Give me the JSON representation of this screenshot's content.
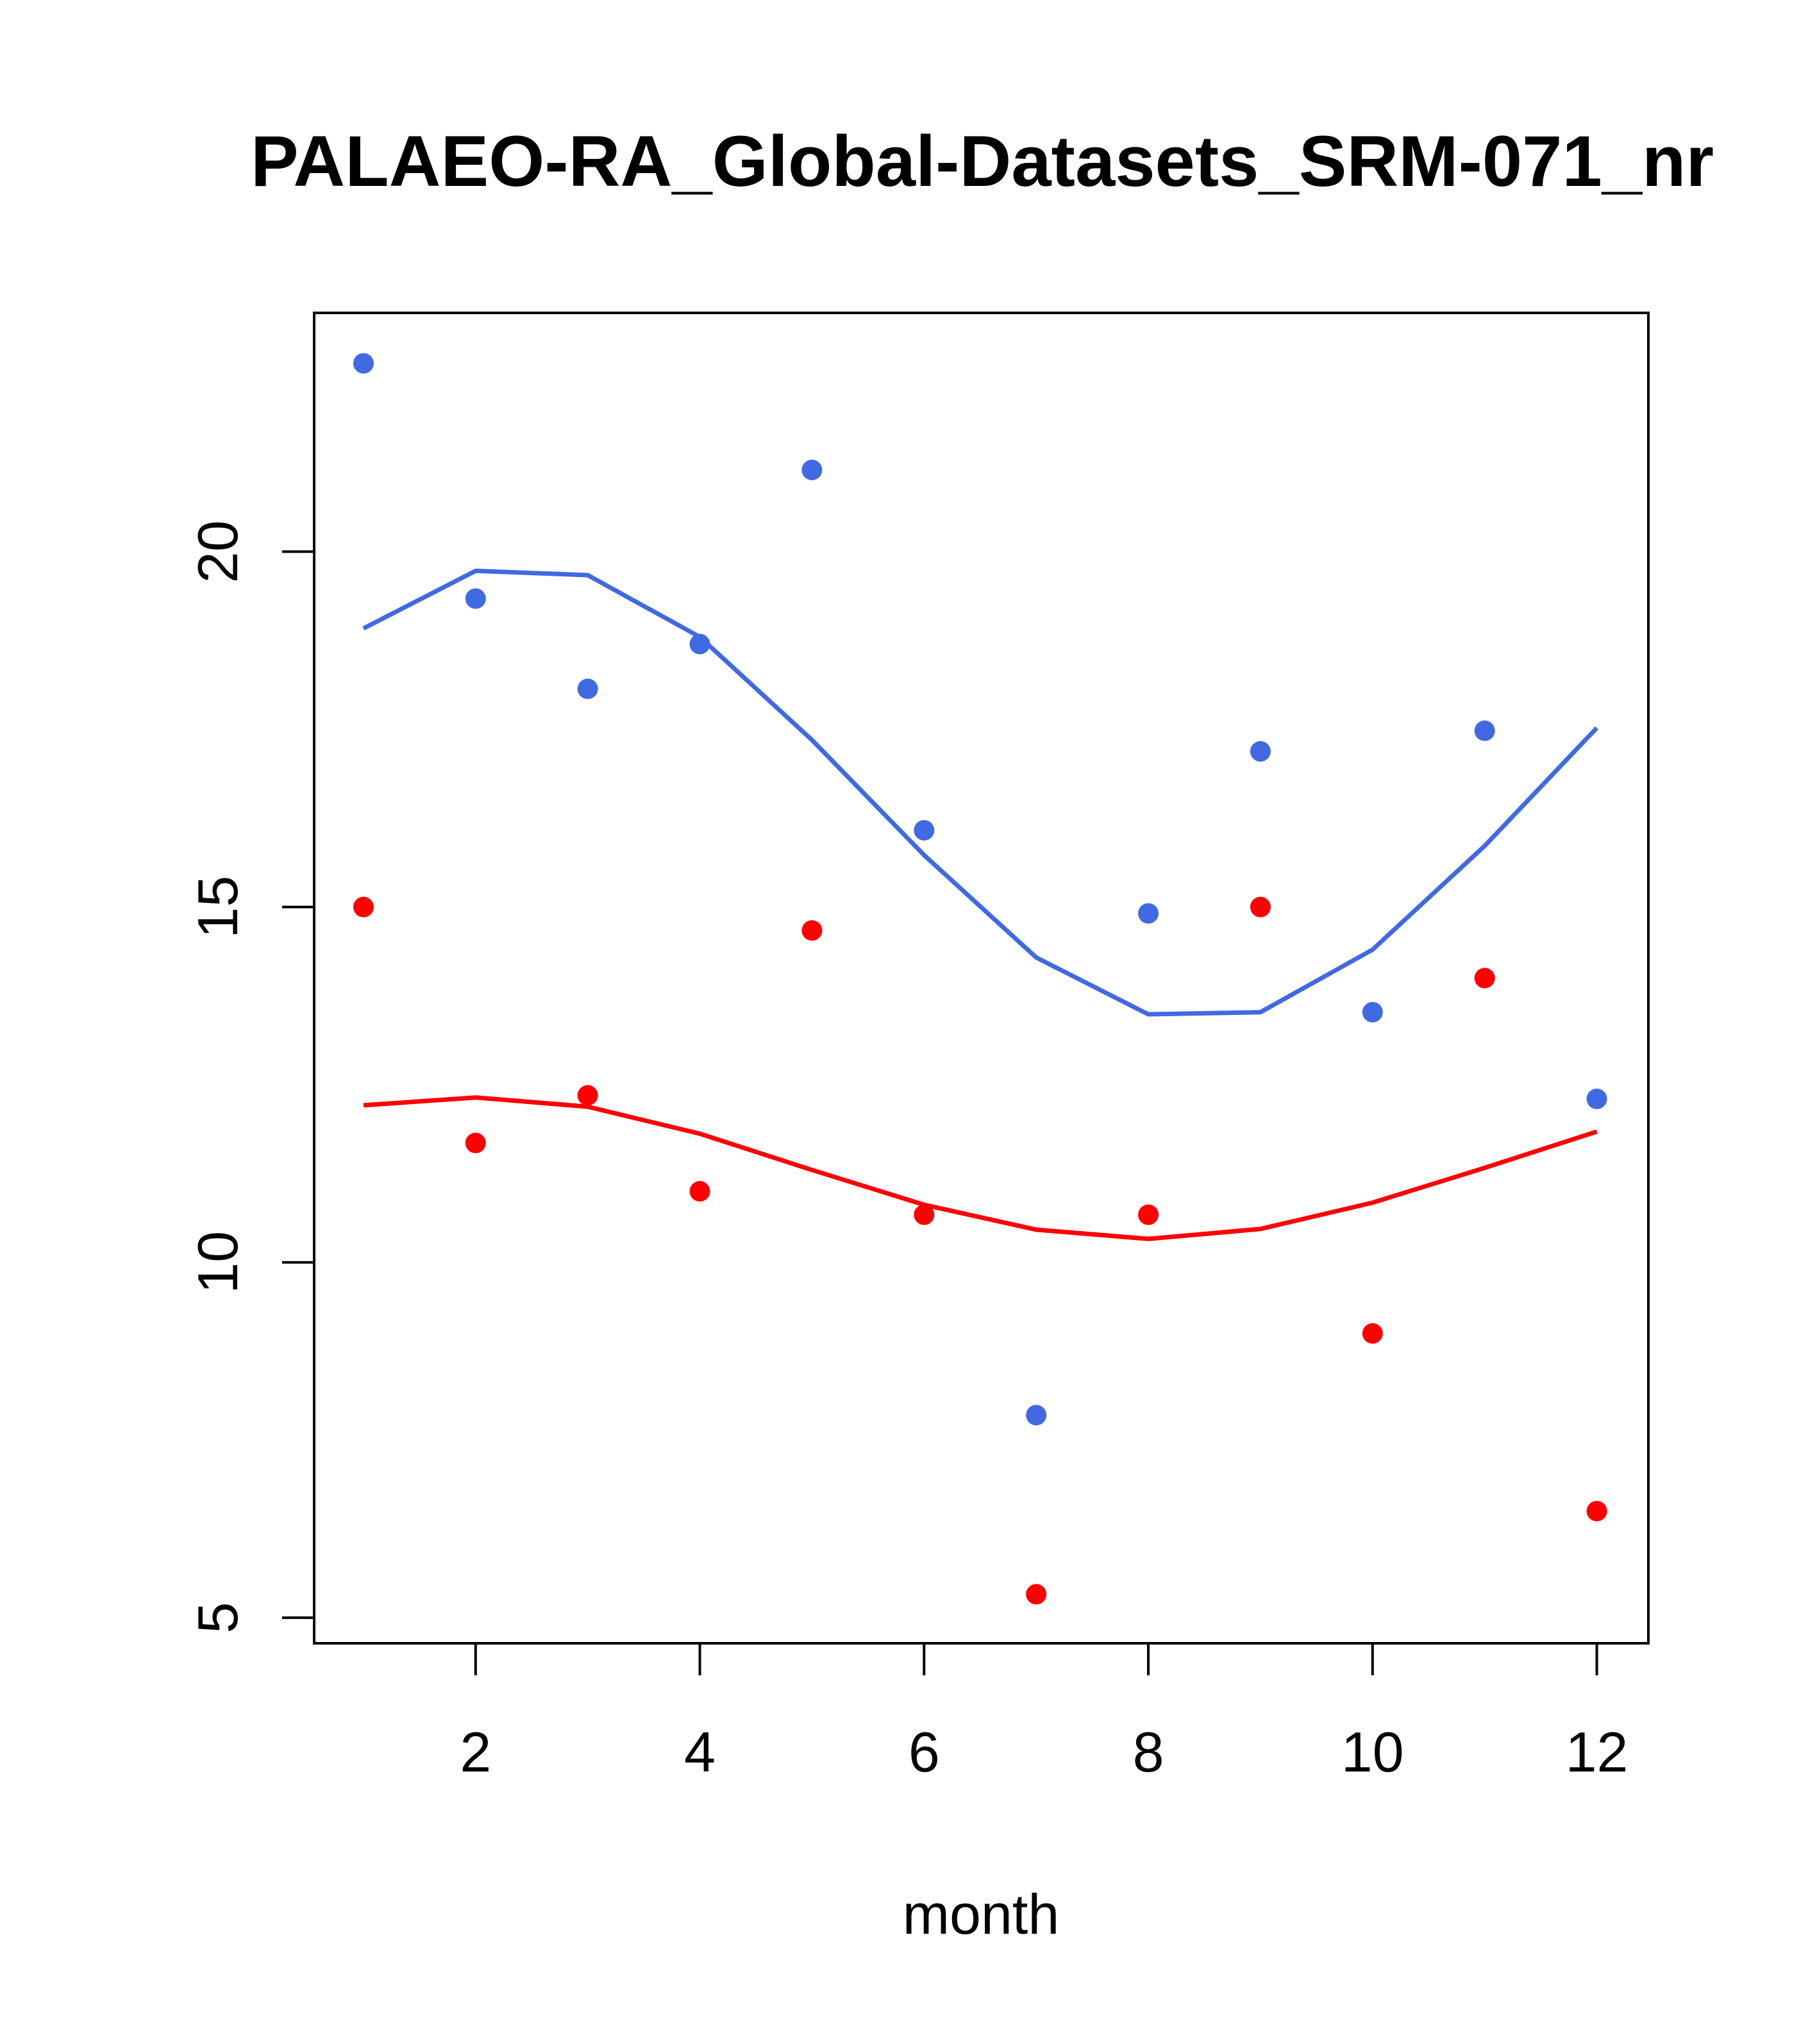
{
  "chart_data": {
    "type": "scatter",
    "title": "PALAEO-RA_Global-Datasets_SRM-071_nr",
    "xlabel": "month",
    "ylabel": "",
    "xlim": [
      0.56,
      12.46
    ],
    "ylim": [
      4.64,
      23.36
    ],
    "xticks": [
      2,
      4,
      6,
      8,
      10,
      12
    ],
    "yticks": [
      5,
      10,
      15,
      20
    ],
    "grid": false,
    "x": [
      1,
      2,
      3,
      4,
      5,
      6,
      7,
      8,
      9,
      10,
      11,
      12
    ],
    "series": [
      {
        "name": "blue points",
        "kind": "points",
        "color": "#4169E1",
        "values": [
          22.65,
          19.34,
          18.07,
          18.7,
          21.15,
          16.08,
          7.85,
          14.91,
          17.19,
          13.52,
          17.48,
          12.3
        ]
      },
      {
        "name": "red points",
        "kind": "points",
        "color": "#FF0000",
        "values": [
          15.0,
          11.68,
          12.35,
          11.0,
          14.67,
          10.67,
          5.33,
          10.67,
          15.0,
          9.0,
          14.0,
          6.5
        ]
      },
      {
        "name": "blue line",
        "kind": "line",
        "color": "#4169E1",
        "values": [
          18.92,
          19.73,
          19.67,
          18.8,
          17.35,
          15.73,
          14.29,
          13.49,
          13.52,
          14.4,
          15.86,
          17.52
        ]
      },
      {
        "name": "red line",
        "kind": "line",
        "color": "#FF0000",
        "values": [
          12.21,
          12.32,
          12.19,
          11.81,
          11.3,
          10.81,
          10.46,
          10.33,
          10.47,
          10.84,
          11.33,
          11.84
        ]
      }
    ]
  }
}
